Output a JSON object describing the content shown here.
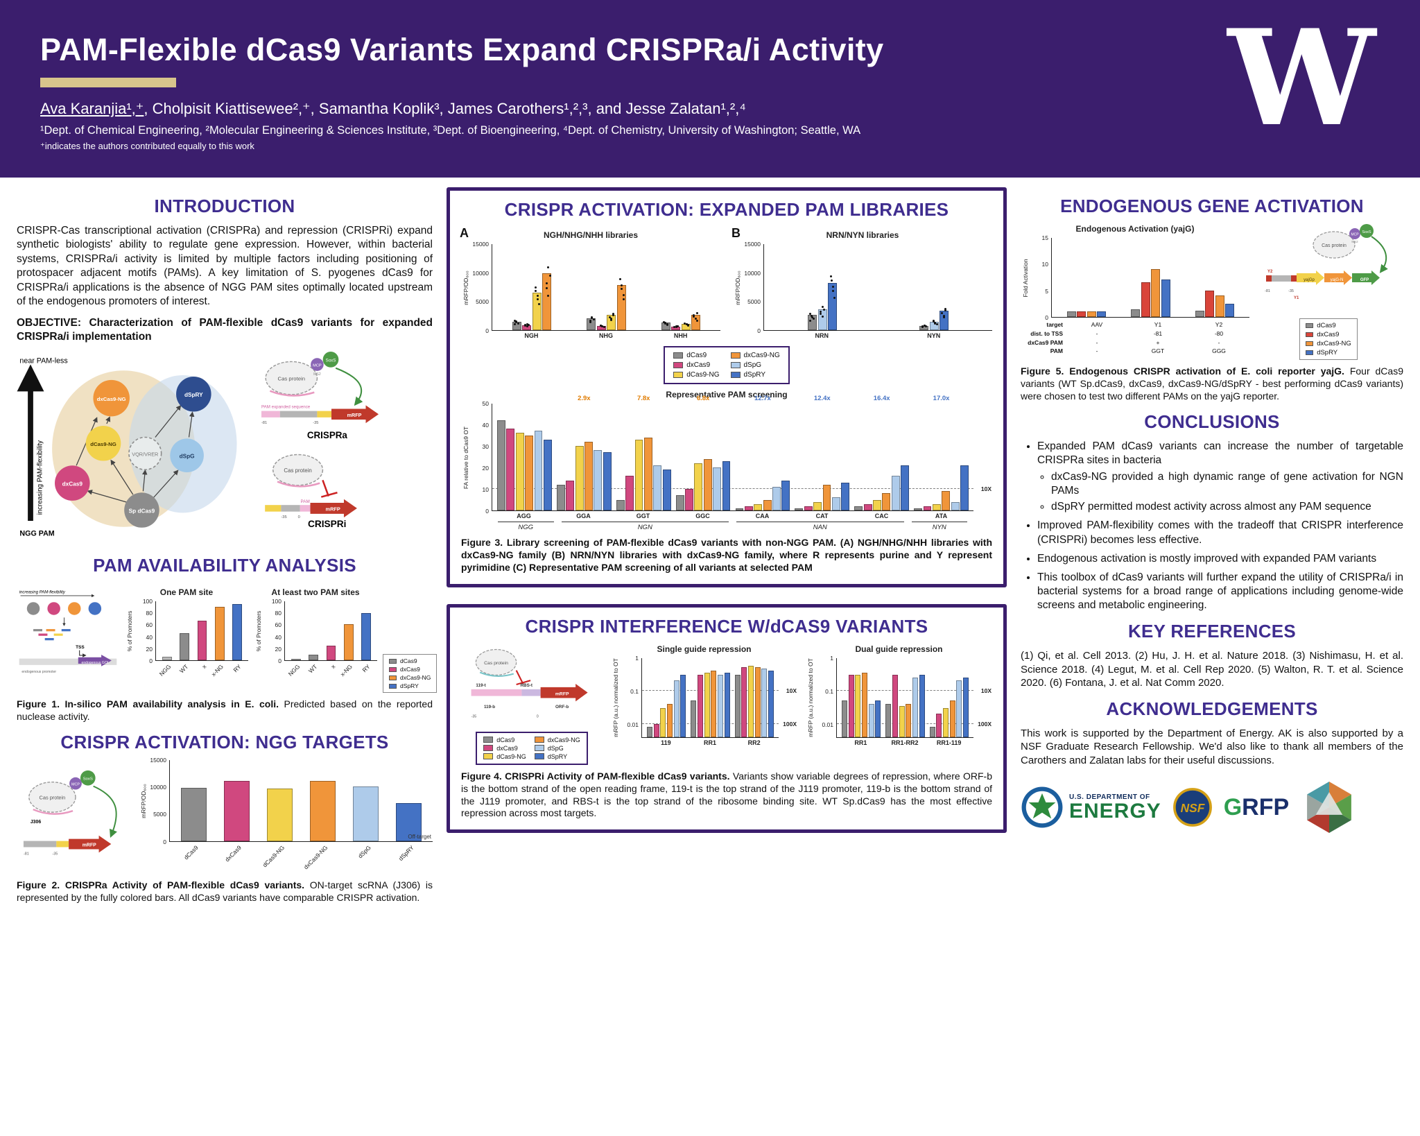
{
  "header": {
    "title": "PAM-Flexible dCas9 Variants Expand CRISPRa/i Activity",
    "authors_first": "Ava Karanjia¹,⁺",
    "authors_rest": ", Cholpisit Kiattisewee²,⁺, Samantha Koplik³, James Carothers¹,²,³, and Jesse Zalatan¹,²,⁴",
    "affiliations": "¹Dept. of Chemical Engineering, ²Molecular Engineering & Sciences Institute, ³Dept. of Bioengineering, ⁴Dept. of Chemistry, University of Washington; Seattle, WA",
    "equal_note": "⁺indicates the authors contributed equally to this work",
    "logo": "W"
  },
  "legends": {
    "variants6": [
      {
        "name": "dCas9",
        "color": "#8c8c8c"
      },
      {
        "name": "dxCas9",
        "color": "#d0487f"
      },
      {
        "name": "dCas9-NG",
        "color": "#f2d24b"
      },
      {
        "name": "dxCas9-NG",
        "color": "#f0953a"
      },
      {
        "name": "dSpG",
        "color": "#aecbea"
      },
      {
        "name": "dSpRY",
        "color": "#4472c4"
      }
    ],
    "variants4": [
      {
        "name": "dCas9",
        "color": "#8c8c8c"
      },
      {
        "name": "dxCas9",
        "color": "#d0487f"
      },
      {
        "name": "dxCas9-NG",
        "color": "#f0953a"
      },
      {
        "name": "dSpRY",
        "color": "#4472c4"
      }
    ],
    "variants4_fig5": [
      {
        "name": "dCas9",
        "color": "#8c8c8c"
      },
      {
        "name": "dxCas9",
        "color": "#d9453a"
      },
      {
        "name": "dxCas9-NG",
        "color": "#f0953a"
      },
      {
        "name": "dSpRY",
        "color": "#4472c4"
      }
    ]
  },
  "intro": {
    "title": "INTRODUCTION",
    "body": "CRISPR-Cas transcriptional activation (CRISPRa) and repression (CRISPRi) expand synthetic biologists' ability to regulate gene expression. However, within bacterial systems, CRISPRa/i activity is limited by multiple factors including positioning of protospacer adjacent motifs (PAMs). A key limitation of S. pyogenes dCas9 for CRISPRa/i applications is the absence of NGG PAM sites optimally located upstream of the endogenous promoters of interest.",
    "objective": "OBJECTIVE: Characterization of PAM-flexible dCas9 variants for expanded CRISPRa/i implementation",
    "diagram": {
      "axis_top": "near PAM-less",
      "axis_label": "increasing PAM-flexibility",
      "axis_bottom": "NGG PAM",
      "v_dxcas9ng": "dxCas9-NG",
      "v_dspry": "dSpRY",
      "v_dcas9ng": "dCas9-NG",
      "v_dxcas9": "dxCas9",
      "v_dspg": "dSpG",
      "v_vqr": "VQR/VRER",
      "v_sp": "Sp dCas9"
    },
    "crispra": {
      "cas": "Cas protein",
      "mcp": "MCP",
      "soxs": "SoxS",
      "ms2": "MS2",
      "pam": "PAM expanded sequence",
      "p1": "-81",
      "p2": "-35",
      "gene": "mRFP",
      "label": "CRISPRa"
    },
    "crispri": {
      "cas": "Cas protein",
      "pam": "PAM",
      "p1": "-35",
      "p2": "0",
      "gene": "mRFP",
      "label": "CRISPRi"
    }
  },
  "pam_analysis": {
    "title": "PAM AVAILABILITY ANALYSIS",
    "caption_label": "Figure 1. In-silico PAM availability analysis in E. coli.",
    "caption_text": "Predicted based on the reported nuclease activity.",
    "diagram": {
      "flex": "increasing PAM-flexibility",
      "tss": "TSS",
      "prom": "endogenous promoter",
      "goi": "endogenous GOI"
    }
  },
  "ngg_targets": {
    "title": "CRISPR ACTIVATION: NGG TARGETS",
    "caption_label": "Figure 2. CRISPRa Activity of PAM-flexible dCas9 variants.",
    "caption_text": "ON-target scRNA (J306) is represented by the fully colored bars. All dCas9 variants have comparable CRISPR activation.",
    "diagram": {
      "cas": "Cas protein",
      "mcp": "MCP",
      "soxs": "SoxS",
      "j306": "J306",
      "p1": "-81",
      "p2": "-35",
      "gene": "mRFP"
    }
  },
  "expanded_pam": {
    "title": "CRISPR ACTIVATION: EXPANDED PAM LIBRARIES",
    "panel_a": "A",
    "panel_b": "B",
    "caption_label": "Figure 3. Library screening of PAM-flexible dCas9 variants with non-NGG PAM.",
    "caption_text": "(A) NGH/NHG/NHH libraries with dxCas9-NG family (B) NRN/NYN libraries with dxCas9-NG family, where R represents purine and Y represent pyrimidine (C) Representative PAM screening of all variants at selected PAM"
  },
  "interference": {
    "title": "CRISPR INTERFERENCE W/dCAS9 VARIANTS",
    "caption_label": "Figure 4. CRISPRi Activity of PAM-flexible dCas9 variants.",
    "caption_text": "Variants show variable degrees of repression, where ORF-b is the bottom strand of the open reading frame, 119-t is the top strand of the J119 promoter, 119-b is the bottom strand of the J119 promoter, and RBS-t is the top strand of the ribosome binding site. WT Sp.dCas9 has the most effective repression across most targets.",
    "diagram": {
      "cas": "Cas protein",
      "t119": "119-t",
      "rbs": "RBS-t",
      "b119": "119-b",
      "orfb": "ORF-b",
      "gene": "mRFP",
      "p1": "-35",
      "p2": "0"
    }
  },
  "endogenous": {
    "title": "ENDOGENOUS GENE ACTIVATION",
    "caption_label": "Figure 5. Endogenous CRISPR activation of E. coli reporter yajG.",
    "caption_text": "Four dCas9 variants (WT Sp.dCas9, dxCas9, dxCas9-NG/dSpRY - best performing dCas9 variants) were chosen to test two different PAMs on the yajG reporter.",
    "diagram": {
      "cas": "Cas protein",
      "mcp": "MCP",
      "soxs": "SoxS",
      "ms2": "MS2",
      "y1": "Y1",
      "y2": "Y2",
      "p1": "-81",
      "p2": "-35",
      "yajgp": "yajGp",
      "yajgn": "yajG-N",
      "gfp": "GFP"
    },
    "table": {
      "rows": [
        {
          "label": "target",
          "values": [
            "AAV",
            "Y1",
            "Y2"
          ]
        },
        {
          "label": "dist. to TSS",
          "values": [
            "-",
            "-81",
            "-80"
          ]
        },
        {
          "label": "dxCas9 PAM",
          "values": [
            "-",
            "+",
            "-"
          ]
        },
        {
          "label": "PAM",
          "values": [
            "-",
            "GGT",
            "GGG"
          ]
        }
      ]
    }
  },
  "conclusions": {
    "title": "CONCLUSIONS",
    "items": [
      {
        "text": "Expanded PAM dCas9 variants can increase the number of targetable CRISPRa sites in bacteria",
        "sub": [
          "dxCas9-NG provided a high dynamic range of gene activation for NGN PAMs",
          "dSpRY permitted modest activity across almost any PAM sequence"
        ]
      },
      {
        "text": "Improved PAM-flexibility comes with the tradeoff that CRISPR interference (CRISPRi) becomes less effective.",
        "sub": []
      },
      {
        "text": "Endogenous activation is mostly improved with expanded PAM variants",
        "sub": []
      },
      {
        "text": "This toolbox of dCas9 variants will further expand the utility of CRISPRa/i in bacterial systems for a broad range of applications including genome-wide screens and metabolic engineering.",
        "sub": []
      }
    ]
  },
  "references": {
    "title": "KEY REFERENCES",
    "text": "(1) Qi, et al. Cell 2013. (2) Hu, J. H. et al. Nature 2018. (3) Nishimasu, H. et al. Science 2018. (4) Legut, M. et al. Cell Rep 2020. (5) Walton, R. T. et al. Science 2020. (6) Fontana, J. et al. Nat Comm 2020."
  },
  "ack": {
    "title": "ACKNOWLEDGEMENTS",
    "text": "This work is supported by the Department of Energy. AK is also supported by a NSF Graduate Research Fellowship. We'd also like to thank all members of the Carothers and Zalatan labs for their useful discussions.",
    "doe_top": "U.S. DEPARTMENT OF",
    "doe_main": "ENERGY",
    "nsf": "NSF",
    "grfp_g": "G",
    "grfp_rfp": "RFP"
  },
  "chart_data": {
    "fig1_one": {
      "type": "bar",
      "h": 86,
      "title": "One PAM site",
      "ylabel": "% of Promoters",
      "ymax": 100,
      "yticks": [
        0,
        20,
        40,
        60,
        80,
        100
      ],
      "rotate_labels": true,
      "bars": [
        {
          "label": "NGG",
          "color": "#b8b8b8",
          "value": 6
        },
        {
          "label": "WT",
          "color": "#8c8c8c",
          "value": 45
        },
        {
          "label": "x",
          "color": "#d0487f",
          "value": 66
        },
        {
          "label": "x-NG",
          "color": "#f0953a",
          "value": 90
        },
        {
          "label": "RY",
          "color": "#4472c4",
          "value": 94
        }
      ]
    },
    "fig1_two": {
      "type": "bar",
      "h": 86,
      "title": "At least two PAM sites",
      "ylabel": "% of Promoters",
      "ymax": 100,
      "yticks": [
        0,
        20,
        40,
        60,
        80,
        100
      ],
      "rotate_labels": true,
      "bars": [
        {
          "label": "NGG",
          "color": "#b8b8b8",
          "value": 2
        },
        {
          "label": "WT",
          "color": "#8c8c8c",
          "value": 9
        },
        {
          "label": "x",
          "color": "#d0487f",
          "value": 25
        },
        {
          "label": "x-NG",
          "color": "#f0953a",
          "value": 61
        },
        {
          "label": "RY",
          "color": "#4472c4",
          "value": 79
        }
      ]
    },
    "fig2": {
      "type": "bar",
      "h": 118,
      "ylabel": "mRFP/OD₆₀₀",
      "ymax": 15000,
      "yticks": [
        0,
        5000,
        10000,
        15000
      ],
      "rotate_labels": true,
      "right_label": "Off-target",
      "bars": [
        {
          "label": "dCas9",
          "color": "#8c8c8c",
          "value": 9800
        },
        {
          "label": "dxCas9",
          "color": "#d0487f",
          "value": 11000
        },
        {
          "label": "dCas9-NG",
          "color": "#f2d24b",
          "value": 9600
        },
        {
          "label": "dxCas9-NG",
          "color": "#f0953a",
          "value": 11000
        },
        {
          "label": "dSpG",
          "color": "#aecbea",
          "value": 10000
        },
        {
          "label": "dSpRY",
          "color": "#4472c4",
          "value": 7000
        }
      ]
    },
    "fig3a": {
      "type": "bar",
      "h": 125,
      "title": "NGH/NHG/NHH libraries",
      "ylabel": "mRFP/OD₆₀₀",
      "ymax": 15000,
      "yticks": [
        0,
        5000,
        10000,
        15000
      ],
      "dots": true,
      "categories": [
        "NGH",
        "NHG",
        "NHH"
      ],
      "series": [
        {
          "name": "dCas9",
          "color": "#8c8c8c",
          "values": [
            1500,
            2000,
            1300
          ]
        },
        {
          "name": "dxCas9",
          "color": "#d0487f",
          "values": [
            900,
            700,
            600
          ]
        },
        {
          "name": "dCas9-NG",
          "color": "#f2d24b",
          "values": [
            6500,
            2600,
            1100
          ]
        },
        {
          "name": "dxCas9-NG",
          "color": "#f0953a",
          "values": [
            9800,
            7800,
            2700
          ]
        }
      ]
    },
    "fig3b": {
      "type": "bar",
      "h": 125,
      "title": "NRN/NYN libraries",
      "ylabel": "mRFP/OD₆₀₀",
      "ymax": 15000,
      "yticks": [
        0,
        5000,
        10000,
        15000
      ],
      "dots": true,
      "categories": [
        "NRN",
        "NYN"
      ],
      "series": [
        {
          "name": "dCas9",
          "color": "#8c8c8c",
          "values": [
            2600,
            700
          ]
        },
        {
          "name": "dSpG",
          "color": "#aecbea",
          "values": [
            3600,
            1500
          ]
        },
        {
          "name": "dSpRY",
          "color": "#4472c4",
          "values": [
            8200,
            3400
          ]
        }
      ]
    },
    "fig3c": {
      "type": "bar",
      "h": 155,
      "title": "Representative PAM screening",
      "ylabel": "FA relative to dCas9 OT",
      "ymax": 50,
      "yticks": [
        0,
        10,
        20,
        30,
        40,
        50
      ],
      "lines": [
        {
          "y": 10,
          "label": "10X"
        }
      ],
      "categories": [
        "AGG",
        "GGA",
        "GGT",
        "GGC",
        "CAA",
        "CAT",
        "CAC",
        "ATA"
      ],
      "series": [
        {
          "name": "dCas9",
          "color": "#8c8c8c",
          "values": [
            42,
            12,
            5,
            7,
            1,
            1,
            2,
            1
          ]
        },
        {
          "name": "dxCas9",
          "color": "#d0487f",
          "values": [
            38,
            14,
            16,
            10,
            2,
            2,
            3,
            2
          ]
        },
        {
          "name": "dCas9-NG",
          "color": "#f2d24b",
          "values": [
            36,
            30,
            33,
            22,
            3,
            4,
            5,
            3
          ]
        },
        {
          "name": "dxCas9-NG",
          "color": "#f0953a",
          "values": [
            35,
            32,
            34,
            24,
            5,
            12,
            8,
            9
          ]
        },
        {
          "name": "dSpG",
          "color": "#aecbea",
          "values": [
            37,
            28,
            21,
            20,
            11,
            6,
            16,
            4
          ]
        },
        {
          "name": "dSpRY",
          "color": "#4472c4",
          "values": [
            33,
            27,
            19,
            23,
            14,
            13,
            21,
            21
          ]
        }
      ],
      "annotations": [
        {
          "cat": "GGA",
          "text": "2.9x",
          "color": "#e07b00"
        },
        {
          "cat": "GGT",
          "text": "7.8x",
          "color": "#e07b00"
        },
        {
          "cat": "GGC",
          "text": "6.8x",
          "color": "#e07b00"
        },
        {
          "cat": "CAA",
          "text": "12.7x",
          "color": "#4472c4"
        },
        {
          "cat": "CAT",
          "text": "12.4x",
          "color": "#4472c4"
        },
        {
          "cat": "CAC",
          "text": "16.4x",
          "color": "#4472c4"
        },
        {
          "cat": "ATA",
          "text": "17.0x",
          "color": "#4472c4"
        }
      ],
      "group_labels": [
        {
          "label": "NGG",
          "from": 0,
          "to": 0
        },
        {
          "label": "NGN",
          "from": 1,
          "to": 3
        },
        {
          "label": "NAN",
          "from": 4,
          "to": 6
        },
        {
          "label": "NYN",
          "from": 7,
          "to": 7
        }
      ]
    },
    "fig4_single": {
      "type": "bar",
      "h": 115,
      "title": "Single guide repression",
      "ylabel": "mRFP (a.u.) normalized to OT",
      "scale": "log",
      "ymin": 0.004,
      "ymax": 1,
      "yticks": [
        1,
        0.1,
        0.01
      ],
      "lines": [
        {
          "y": 0.1,
          "label": "10X"
        },
        {
          "y": 0.01,
          "label": "100X"
        }
      ],
      "categories": [
        "119",
        "RR1",
        "RR2"
      ],
      "series": [
        {
          "name": "dCas9",
          "color": "#8c8c8c",
          "values": [
            0.008,
            0.05,
            0.3
          ]
        },
        {
          "name": "dxCas9",
          "color": "#d0487f",
          "values": [
            0.01,
            0.3,
            0.5
          ]
        },
        {
          "name": "dCas9-NG",
          "color": "#f2d24b",
          "values": [
            0.03,
            0.35,
            0.55
          ]
        },
        {
          "name": "dxCas9-NG",
          "color": "#f0953a",
          "values": [
            0.04,
            0.4,
            0.5
          ]
        },
        {
          "name": "dSpG",
          "color": "#aecbea",
          "values": [
            0.2,
            0.3,
            0.45
          ]
        },
        {
          "name": "dSpRY",
          "color": "#4472c4",
          "values": [
            0.3,
            0.35,
            0.4
          ]
        }
      ]
    },
    "fig4_dual": {
      "type": "bar",
      "h": 115,
      "title": "Dual guide repression",
      "ylabel": "mRFP (a.u.) normalized to OT",
      "scale": "log",
      "ymin": 0.004,
      "ymax": 1,
      "yticks": [
        1,
        0.1,
        0.01
      ],
      "lines": [
        {
          "y": 0.1,
          "label": "10X"
        },
        {
          "y": 0.01,
          "label": "100X"
        }
      ],
      "categories": [
        "RR1",
        "RR1-RR2",
        "RR1-119"
      ],
      "series": [
        {
          "name": "dCas9",
          "color": "#8c8c8c",
          "values": [
            0.05,
            0.04,
            0.008
          ]
        },
        {
          "name": "dxCas9",
          "color": "#d0487f",
          "values": [
            0.3,
            0.3,
            0.02
          ]
        },
        {
          "name": "dCas9-NG",
          "color": "#f2d24b",
          "values": [
            0.3,
            0.035,
            0.03
          ]
        },
        {
          "name": "dxCas9-NG",
          "color": "#f0953a",
          "values": [
            0.35,
            0.04,
            0.05
          ]
        },
        {
          "name": "dSpG",
          "color": "#aecbea",
          "values": [
            0.04,
            0.25,
            0.2
          ]
        },
        {
          "name": "dSpRY",
          "color": "#4472c4",
          "values": [
            0.05,
            0.3,
            0.25
          ]
        }
      ]
    },
    "fig5": {
      "type": "bar",
      "h": 115,
      "title": "Endogenous Activation (yajG)",
      "ylabel": "Fold Activation",
      "ymax": 15,
      "yticks": [
        0,
        5,
        10,
        15
      ],
      "hide_cats": true,
      "categories": [
        "AAV",
        "Y1",
        "Y2"
      ],
      "series": [
        {
          "name": "dCas9",
          "color": "#8c8c8c",
          "values": [
            1,
            1.5,
            1.2
          ]
        },
        {
          "name": "dxCas9",
          "color": "#d9453a",
          "values": [
            1,
            6.5,
            5
          ]
        },
        {
          "name": "dxCas9-NG",
          "color": "#f0953a",
          "values": [
            1,
            9,
            4
          ]
        },
        {
          "name": "dSpRY",
          "color": "#4472c4",
          "values": [
            1,
            7,
            2.5
          ]
        }
      ]
    }
  }
}
